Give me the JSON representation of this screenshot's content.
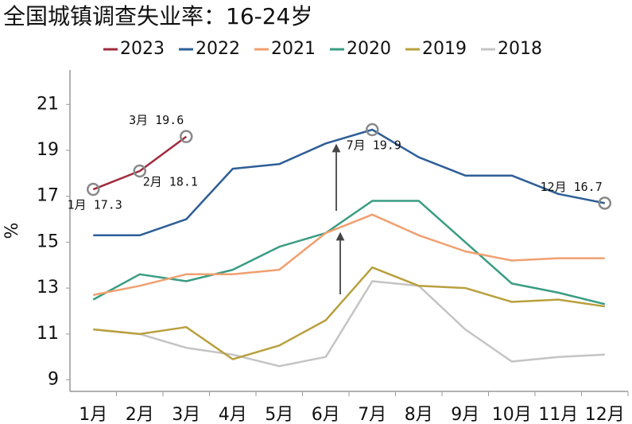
{
  "chart_data": {
    "type": "line",
    "title": "全国城镇调查失业率：16-24岁",
    "y_label": "%",
    "categories": [
      "1月",
      "2月",
      "3月",
      "4月",
      "5月",
      "6月",
      "7月",
      "8月",
      "9月",
      "10月",
      "11月",
      "12月"
    ],
    "ylim": [
      8.5,
      22.5
    ],
    "yticks": [
      9,
      11,
      13,
      15,
      17,
      19,
      21
    ],
    "grid": false,
    "series": [
      {
        "name": "2023",
        "color": "#a02b3c",
        "values": [
          17.3,
          18.1,
          19.6,
          null,
          null,
          null,
          null,
          null,
          null,
          null,
          null,
          null
        ],
        "value_labels": [
          "1月 17.3",
          "2月 18.1",
          "3月 19.6",
          null,
          null,
          null,
          null,
          null,
          null,
          null,
          null,
          null
        ]
      },
      {
        "name": "2022",
        "color": "#2e5e97",
        "values": [
          15.3,
          15.3,
          16.0,
          18.2,
          18.4,
          19.3,
          19.9,
          18.7,
          17.9,
          17.9,
          17.1,
          16.7
        ],
        "value_labels": [
          null,
          null,
          null,
          null,
          null,
          null,
          "7月 19.9",
          null,
          null,
          null,
          null,
          "12月 16.7"
        ]
      },
      {
        "name": "2021",
        "color": "#f0a070",
        "values": [
          12.7,
          13.1,
          13.6,
          13.6,
          13.8,
          15.4,
          16.2,
          15.3,
          14.6,
          14.2,
          14.3,
          14.3
        ]
      },
      {
        "name": "2020",
        "color": "#3a9c82",
        "values": [
          12.5,
          13.6,
          13.3,
          13.8,
          14.8,
          15.4,
          16.8,
          16.8,
          15.0,
          13.2,
          12.8,
          12.3
        ]
      },
      {
        "name": "2019",
        "color": "#b9a03e",
        "values": [
          11.2,
          11.0,
          11.3,
          9.9,
          10.5,
          11.6,
          13.9,
          13.1,
          13.0,
          12.4,
          12.5,
          12.2
        ]
      },
      {
        "name": "2018",
        "color": "#c4c4c4",
        "values": [
          11.2,
          11.0,
          10.4,
          10.1,
          9.6,
          10.0,
          13.3,
          13.1,
          11.2,
          9.8,
          10.0,
          10.1
        ]
      }
    ]
  }
}
